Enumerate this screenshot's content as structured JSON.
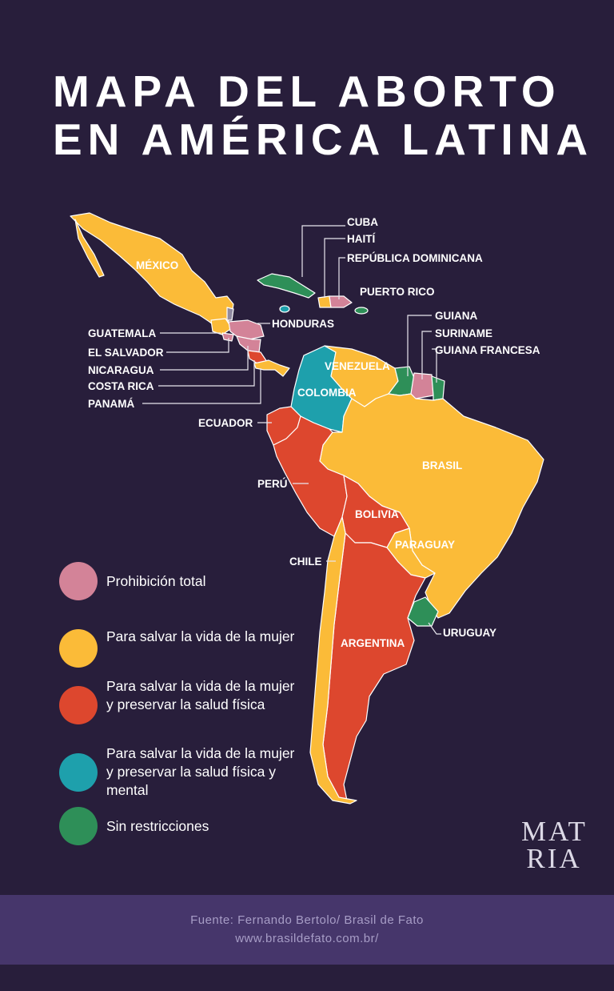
{
  "title": {
    "line1": "MAPA DEL ABORTO",
    "line2": "EN AMÉRICA LATINA"
  },
  "colors": {
    "prohibicion_total": "#d38398",
    "vida_mujer": "#fbbb38",
    "vida_salud_fisica": "#dd472e",
    "vida_salud_fisica_mental": "#1ea0ac",
    "sin_restricciones": "#2e8f58",
    "background": "#281e3b",
    "footer": "#46366b"
  },
  "countries": {
    "mexico": "MÉXICO",
    "cuba": "CUBA",
    "haiti": "HAITÍ",
    "republica_dominicana": "REPÚBLICA DOMINICANA",
    "puerto_rico": "PUERTO RICO",
    "honduras": "HONDURAS",
    "guatemala": "GUATEMALA",
    "el_salvador": "EL SALVADOR",
    "nicaragua": "NICARAGUA",
    "costa_rica": "COSTA RICA",
    "panama": "PANAMÁ",
    "guiana": "GUIANA",
    "suriname": "SURINAME",
    "guiana_francesa": "GUIANA FRANCESA",
    "venezuela": "VENEZUELA",
    "colombia": "COLOMBIA",
    "ecuador": "ECUADOR",
    "brasil": "BRASIL",
    "peru": "PERÚ",
    "bolivia": "BOLIVIA",
    "paraguay": "PARAGUAY",
    "chile": "CHILE",
    "uruguay": "URUGUAY",
    "argentina": "ARGENTINA"
  },
  "legend": [
    {
      "label": "Prohibición total",
      "color": "#d38398"
    },
    {
      "label": "Para salvar la vida de la mujer",
      "color": "#fbbb38"
    },
    {
      "label": "Para salvar la vida de la mujer y preservar la salud física",
      "color": "#dd472e"
    },
    {
      "label": "Para salvar la vida de la mujer y preservar la salud física y mental",
      "color": "#1ea0ac"
    },
    {
      "label": "Sin restricciones",
      "color": "#2e8f58"
    }
  ],
  "logo": {
    "line1": "MAT",
    "line2": "RIA"
  },
  "footer": {
    "source": "Fuente: Fernando Bertolo/ Brasil de Fato",
    "url": "www.brasildefato.com.br/"
  }
}
